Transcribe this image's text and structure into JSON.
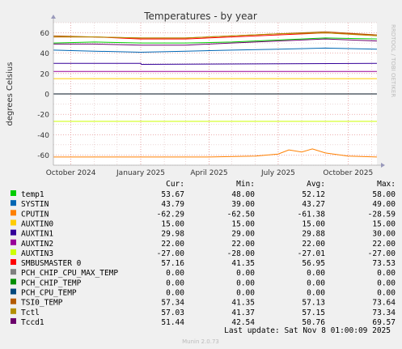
{
  "page": {
    "title": "Temperatures - by year",
    "side_label": "RRDTOOL / TOBI OETIKER",
    "footer": "Munin 2.0.73",
    "last_update": "Last update: Sat Nov  8 01:00:09 2025"
  },
  "table": {
    "headers": [
      "Cur:",
      "Min:",
      "Avg:",
      "Max:"
    ]
  },
  "colors": {
    "background": "#f0f0f0",
    "plot_bg": "#ffffff",
    "grid_major": "#e08080",
    "grid_minor": "#d8b0b0",
    "zero_line": "#000000"
  },
  "chart_data": {
    "type": "line",
    "title": "Temperatures - by year",
    "ylabel": "degrees Celsius",
    "xlabel": "",
    "ylim": [
      -70,
      70
    ],
    "y_ticks": [
      -60,
      -40,
      -20,
      0,
      20,
      40,
      60
    ],
    "x_ticks": [
      "October 2024",
      "January 2025",
      "April 2025",
      "July 2025",
      "October 2025"
    ],
    "x_range": [
      "2024-09-08",
      "2025-11-08"
    ],
    "x_tick_dates": [
      "2024-10-01",
      "2025-01-01",
      "2025-04-01",
      "2025-07-01",
      "2025-10-01"
    ],
    "grid": true,
    "legend_placement": "bottom",
    "series": [
      {
        "name": "temp1",
        "color": "#00cc00",
        "cur": "53.67",
        "min": "48.00",
        "avg": "52.12",
        "max": "58.00",
        "x": [
          "2024-09-08",
          "2024-11-01",
          "2025-01-01",
          "2025-03-01",
          "2025-05-01",
          "2025-07-01",
          "2025-09-01",
          "2025-11-08"
        ],
        "values": [
          50,
          51,
          50,
          50,
          51,
          53,
          55,
          54
        ]
      },
      {
        "name": "SYSTIN",
        "color": "#0066b3",
        "cur": "43.79",
        "min": "39.00",
        "avg": "43.27",
        "max": "49.00",
        "x": [
          "2024-09-08",
          "2024-11-01",
          "2025-01-01",
          "2025-03-01",
          "2025-05-01",
          "2025-07-01",
          "2025-09-01",
          "2025-11-08"
        ],
        "values": [
          43,
          42,
          41,
          42,
          43,
          44,
          45,
          44
        ]
      },
      {
        "name": "CPUTIN",
        "color": "#ff8000",
        "cur": "-62.29",
        "min": "-62.50",
        "avg": "-61.38",
        "max": "-28.59",
        "x": [
          "2024-09-08",
          "2025-01-01",
          "2025-04-01",
          "2025-06-01",
          "2025-07-01",
          "2025-07-15",
          "2025-08-01",
          "2025-08-15",
          "2025-09-01",
          "2025-10-01",
          "2025-11-08"
        ],
        "values": [
          -62,
          -62,
          -62,
          -61,
          -59,
          -55,
          -57,
          -54,
          -58,
          -61,
          -62
        ]
      },
      {
        "name": "AUXTIN0",
        "color": "#ffcc00",
        "cur": "15.00",
        "min": "15.00",
        "avg": "15.00",
        "max": "15.00",
        "x": [
          "2024-09-08",
          "2025-11-08"
        ],
        "values": [
          15,
          15
        ]
      },
      {
        "name": "AUXTIN1",
        "color": "#330099",
        "cur": "29.98",
        "min": "29.00",
        "avg": "29.88",
        "max": "30.00",
        "x": [
          "2024-09-08",
          "2025-01-01",
          "2025-01-02",
          "2025-11-08"
        ],
        "values": [
          30,
          30,
          29,
          30
        ]
      },
      {
        "name": "AUXTIN2",
        "color": "#990099",
        "cur": "22.00",
        "min": "22.00",
        "avg": "22.00",
        "max": "22.00",
        "x": [
          "2024-09-08",
          "2025-11-08"
        ],
        "values": [
          22,
          22
        ]
      },
      {
        "name": "AUXTIN3",
        "color": "#ccff00",
        "cur": "-27.00",
        "min": "-28.00",
        "avg": "-27.01",
        "max": "-27.00",
        "x": [
          "2024-09-08",
          "2025-11-08"
        ],
        "values": [
          -27,
          -27
        ]
      },
      {
        "name": "SMBUSMASTER 0",
        "color": "#ff0000",
        "cur": "57.16",
        "min": "41.35",
        "avg": "56.95",
        "max": "73.53",
        "x": [
          "2024-09-08",
          "2024-11-01",
          "2025-01-01",
          "2025-03-01",
          "2025-05-01",
          "2025-07-01",
          "2025-09-01",
          "2025-11-08"
        ],
        "values": [
          56,
          56,
          54,
          54,
          56,
          58,
          60,
          58
        ]
      },
      {
        "name": "PCH_CHIP_CPU_MAX_TEMP",
        "color": "#808080",
        "cur": "0.00",
        "min": "0.00",
        "avg": "0.00",
        "max": "0.00",
        "x": [
          "2024-09-08",
          "2025-11-08"
        ],
        "values": [
          0,
          0
        ]
      },
      {
        "name": "PCH_CHIP_TEMP",
        "color": "#008f00",
        "cur": "0.00",
        "min": "0.00",
        "avg": "0.00",
        "max": "0.00",
        "x": [
          "2024-09-08",
          "2025-11-08"
        ],
        "values": [
          0,
          0
        ]
      },
      {
        "name": "PCH_CPU_TEMP",
        "color": "#00487d",
        "cur": "0.00",
        "min": "0.00",
        "avg": "0.00",
        "max": "0.00",
        "x": [
          "2024-09-08",
          "2025-11-08"
        ],
        "values": [
          0,
          0
        ]
      },
      {
        "name": "TSI0_TEMP",
        "color": "#b35a00",
        "cur": "57.34",
        "min": "41.35",
        "avg": "57.13",
        "max": "73.64",
        "x": [
          "2024-09-08",
          "2024-11-01",
          "2025-01-01",
          "2025-03-01",
          "2025-05-01",
          "2025-07-01",
          "2025-09-01",
          "2025-11-08"
        ],
        "values": [
          57,
          56,
          55,
          55,
          57,
          59,
          61,
          58
        ]
      },
      {
        "name": "Tctl",
        "color": "#b38f00",
        "cur": "57.03",
        "min": "41.37",
        "avg": "57.15",
        "max": "73.34",
        "x": [
          "2024-09-08",
          "2024-11-01",
          "2025-01-01",
          "2025-03-01",
          "2025-05-01",
          "2025-07-01",
          "2025-09-01",
          "2025-11-08"
        ],
        "values": [
          56,
          56,
          55,
          55,
          57,
          59,
          60,
          57
        ]
      },
      {
        "name": "Tccd1",
        "color": "#6b006b",
        "cur": "51.44",
        "min": "42.54",
        "avg": "50.76",
        "max": "69.57",
        "x": [
          "2024-09-08",
          "2024-11-01",
          "2025-01-01",
          "2025-03-01",
          "2025-05-01",
          "2025-07-01",
          "2025-09-01",
          "2025-11-08"
        ],
        "values": [
          49,
          49,
          48,
          48,
          50,
          52,
          54,
          52
        ]
      }
    ]
  }
}
